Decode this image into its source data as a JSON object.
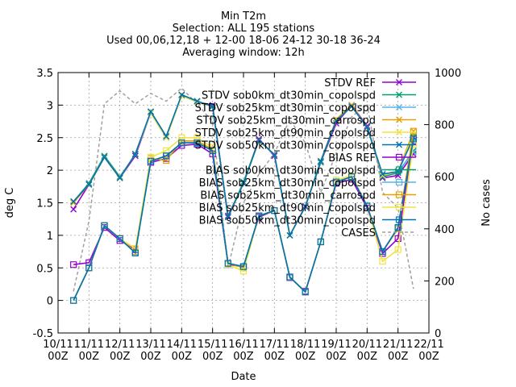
{
  "chart_data": {
    "type": "line",
    "title_lines": [
      "Min T2m",
      "Selection: ALL     195 stations",
      "Used 00,06,12,18 + 12-00 18-06 24-12 30-18 36-24",
      "Averaging window: 12h"
    ],
    "xlabel": "Date",
    "ylabel": "deg C",
    "y2label": "No cases",
    "ylim": [
      -0.5,
      3.5
    ],
    "y2lim": [
      0,
      1000
    ],
    "yticks": [
      "-0.5",
      "0",
      "0.5",
      "1",
      "1.5",
      "2",
      "2.5",
      "3",
      "3.5"
    ],
    "y2ticks": [
      "0",
      "200",
      "400",
      "600",
      "800",
      "1000"
    ],
    "xticks_top": [
      "10/11",
      "11/11",
      "12/11",
      "13/11",
      "14/11",
      "15/11",
      "16/11",
      "17/11",
      "18/11",
      "19/11",
      "20/11",
      "21/11",
      "22/11"
    ],
    "xticks_bottom": [
      "00Z",
      "00Z",
      "00Z",
      "00Z",
      "00Z",
      "00Z",
      "00Z",
      "00Z",
      "00Z",
      "00Z",
      "00Z",
      "00Z",
      "00Z"
    ],
    "grid": true,
    "legend_position": "top-right",
    "x": [
      0.5,
      1,
      1.5,
      2,
      2.5,
      3,
      3.5,
      4,
      4.5,
      5,
      5.5,
      6,
      6.5,
      7,
      7.5,
      8,
      8.5,
      9,
      9.5,
      10,
      10.5,
      11,
      11.5
    ],
    "series": [
      {
        "name": "STDV REF",
        "group": "stdv",
        "color": "#9400d3",
        "marker": "x",
        "dash": "",
        "values": [
          1.4,
          1.78,
          2.2,
          1.88,
          2.22,
          2.88,
          2.5,
          3.15,
          3.05,
          3.0,
          1.3,
          1.8,
          2.48,
          2.22,
          1.0,
          1.45,
          2.12,
          2.72,
          3.0,
          2.68,
          1.88,
          1.92,
          2.25
        ]
      },
      {
        "name": "STDV sob0km_dt30min_copolspd",
        "group": "stdv",
        "color": "#009e73",
        "marker": "x",
        "dash": "",
        "values": [
          1.52,
          1.8,
          2.22,
          1.9,
          2.24,
          2.9,
          2.52,
          3.15,
          3.06,
          2.98,
          1.28,
          1.82,
          2.46,
          2.24,
          1.0,
          1.44,
          2.12,
          2.76,
          2.98,
          2.66,
          1.9,
          1.96,
          2.3
        ]
      },
      {
        "name": "STDV sob25km_dt30min_copolspd",
        "group": "stdv",
        "color": "#56b4e9",
        "marker": "x",
        "dash": "",
        "values": [
          1.52,
          1.78,
          2.2,
          1.88,
          2.25,
          2.88,
          2.5,
          3.14,
          3.05,
          2.98,
          1.28,
          1.8,
          2.45,
          2.24,
          1.0,
          1.44,
          2.14,
          2.76,
          2.98,
          2.66,
          1.92,
          1.98,
          2.28
        ]
      },
      {
        "name": "STDV sob25km_dt30min_carrospd",
        "group": "stdv",
        "color": "#e69f00",
        "marker": "x",
        "dash": "",
        "values": [
          1.5,
          1.78,
          2.2,
          1.88,
          2.25,
          2.88,
          2.5,
          3.15,
          3.06,
          2.98,
          1.28,
          1.8,
          2.46,
          2.24,
          1.0,
          1.44,
          2.14,
          2.78,
          3.0,
          2.66,
          1.92,
          1.98,
          2.6
        ]
      },
      {
        "name": "STDV sob25km_dt90min_copolspd",
        "group": "stdv",
        "color": "#f0e442",
        "marker": "x",
        "dash": "",
        "values": [
          1.52,
          1.78,
          2.2,
          1.88,
          2.25,
          2.88,
          2.5,
          3.14,
          3.05,
          2.98,
          1.28,
          1.8,
          2.45,
          2.24,
          1.0,
          1.44,
          2.14,
          2.76,
          2.98,
          2.66,
          1.92,
          1.98,
          2.55
        ]
      },
      {
        "name": "STDV sob50km_dt30min_copolspd",
        "group": "stdv",
        "color": "#0072b2",
        "marker": "x",
        "dash": "",
        "values": [
          1.52,
          1.78,
          2.2,
          1.88,
          2.25,
          2.9,
          2.52,
          3.16,
          3.06,
          2.98,
          1.28,
          1.8,
          2.46,
          2.24,
          1.0,
          1.44,
          2.14,
          2.76,
          2.98,
          2.66,
          1.94,
          1.98,
          2.5
        ]
      },
      {
        "name": "BIAS REF",
        "group": "bias",
        "color": "#9400d3",
        "marker": "square",
        "dash": "",
        "values": [
          0.55,
          0.58,
          1.12,
          0.92,
          0.78,
          2.12,
          2.18,
          2.38,
          2.4,
          2.25,
          0.55,
          0.52,
          1.28,
          1.38,
          0.35,
          0.14,
          0.9,
          1.8,
          1.86,
          1.42,
          0.72,
          0.95,
          2.45
        ]
      },
      {
        "name": "BIAS sob0km_dt30min_copolspd",
        "group": "bias",
        "color": "#009e73",
        "marker": "square",
        "dash": "",
        "values": [
          0.0,
          0.5,
          1.15,
          0.95,
          0.73,
          2.14,
          2.22,
          2.42,
          2.42,
          2.3,
          0.57,
          0.52,
          1.3,
          1.38,
          0.36,
          0.13,
          0.9,
          1.82,
          1.9,
          1.45,
          0.75,
          1.12,
          2.5
        ]
      },
      {
        "name": "BIAS sob25km_dt30min_copolspd",
        "group": "bias",
        "color": "#56b4e9",
        "marker": "square",
        "dash": "",
        "values": [
          0.0,
          0.5,
          1.15,
          0.95,
          0.73,
          2.14,
          2.22,
          2.42,
          2.42,
          2.3,
          0.57,
          0.52,
          1.3,
          1.38,
          0.36,
          0.13,
          0.9,
          1.82,
          1.9,
          1.45,
          0.75,
          1.12,
          2.48
        ]
      },
      {
        "name": "BIAS sob25km_dt30min_carrospd",
        "group": "bias",
        "color": "#e69f00",
        "marker": "square",
        "dash": "",
        "values": [
          0.0,
          0.5,
          1.15,
          0.95,
          0.75,
          2.18,
          2.15,
          2.45,
          2.45,
          2.32,
          0.57,
          0.5,
          1.3,
          1.38,
          0.36,
          0.13,
          0.9,
          1.82,
          1.9,
          1.45,
          0.75,
          1.1,
          2.6
        ]
      },
      {
        "name": "BIAS sob25km_dt90min_copolspd",
        "group": "bias",
        "color": "#f0e442",
        "marker": "square",
        "dash": "",
        "values": [
          0.0,
          0.5,
          1.15,
          0.95,
          0.8,
          2.2,
          2.3,
          2.5,
          2.5,
          2.35,
          0.55,
          0.45,
          1.3,
          1.38,
          0.36,
          0.13,
          0.9,
          1.85,
          1.92,
          1.45,
          0.6,
          0.78,
          2.4
        ]
      },
      {
        "name": "BIAS sob50km_dt30min_copolspd",
        "group": "bias",
        "color": "#0072b2",
        "marker": "square",
        "dash": "",
        "values": [
          0.0,
          0.5,
          1.15,
          0.95,
          0.73,
          2.14,
          2.22,
          2.42,
          2.42,
          2.3,
          0.57,
          0.52,
          1.3,
          1.38,
          0.36,
          0.13,
          0.9,
          1.82,
          1.9,
          1.45,
          0.75,
          1.12,
          2.48
        ]
      }
    ],
    "cases_series": {
      "name": "CASES",
      "axis": "y2",
      "color": "#a0a0a0",
      "dash": "4,3",
      "x": [
        0.5,
        1,
        1.5,
        2,
        2.5,
        3,
        3.5,
        4,
        4.5,
        5,
        5.5,
        6,
        6.5,
        7,
        7.5,
        8,
        8.5,
        9,
        9.5,
        10,
        10.5,
        11,
        11.5
      ],
      "values": [
        160,
        430,
        880,
        930,
        880,
        920,
        890,
        940,
        880,
        810,
        250,
        500,
        610,
        690,
        820,
        730,
        540,
        690,
        830,
        880,
        540,
        480,
        170
      ]
    }
  }
}
